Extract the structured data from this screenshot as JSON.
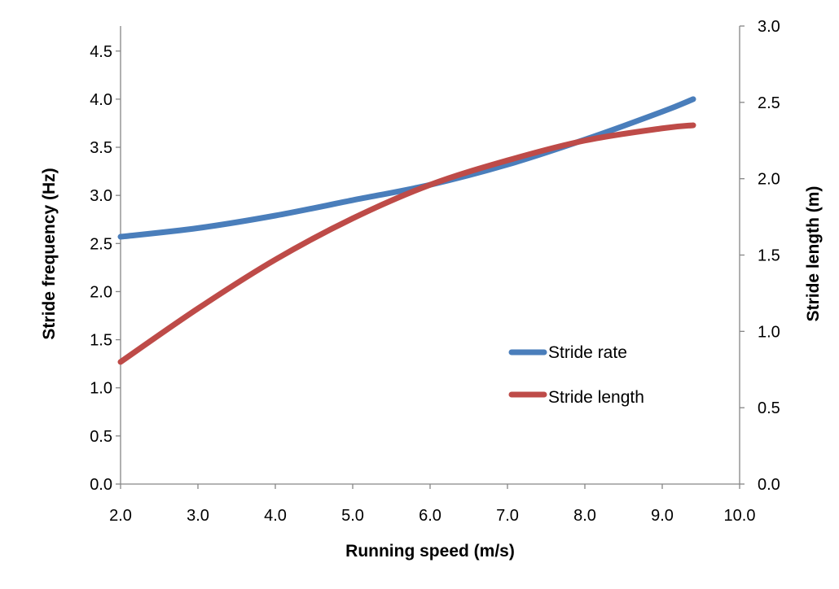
{
  "chart_data": {
    "type": "line",
    "title": "",
    "xlabel": "Running speed (m/s)",
    "ylabel": "Stride frequency (Hz)",
    "y2label": "Stride length (m)",
    "xlim": [
      2.0,
      10.0
    ],
    "ylim": [
      0.0,
      4.76
    ],
    "y2lim": [
      0.0,
      3.0
    ],
    "xticks": [
      "2.0",
      "3.0",
      "4.0",
      "5.0",
      "6.0",
      "7.0",
      "8.0",
      "9.0",
      "10.0"
    ],
    "yticks": [
      "0.0",
      "0.5",
      "1.0",
      "1.5",
      "2.0",
      "2.5",
      "3.0",
      "3.5",
      "4.0",
      "4.5"
    ],
    "y2ticks": [
      "0.0",
      "0.5",
      "1.0",
      "1.5",
      "2.0",
      "2.5",
      "3.0"
    ],
    "grid": false,
    "legend_position": "bottom-right",
    "series": [
      {
        "name": "Stride rate",
        "axis": "left",
        "color": "#4a7ebb",
        "x": [
          2.0,
          3.0,
          4.0,
          5.0,
          6.0,
          7.0,
          8.0,
          9.0,
          9.4
        ],
        "y": [
          2.57,
          2.66,
          2.79,
          2.95,
          3.11,
          3.32,
          3.58,
          3.87,
          4.0
        ]
      },
      {
        "name": "Stride length",
        "axis": "right",
        "color": "#be4b48",
        "x": [
          2.0,
          3.0,
          4.0,
          5.0,
          6.0,
          7.0,
          8.0,
          9.0,
          9.4
        ],
        "y": [
          0.8,
          1.15,
          1.47,
          1.74,
          1.96,
          2.12,
          2.25,
          2.33,
          2.35
        ]
      }
    ]
  }
}
